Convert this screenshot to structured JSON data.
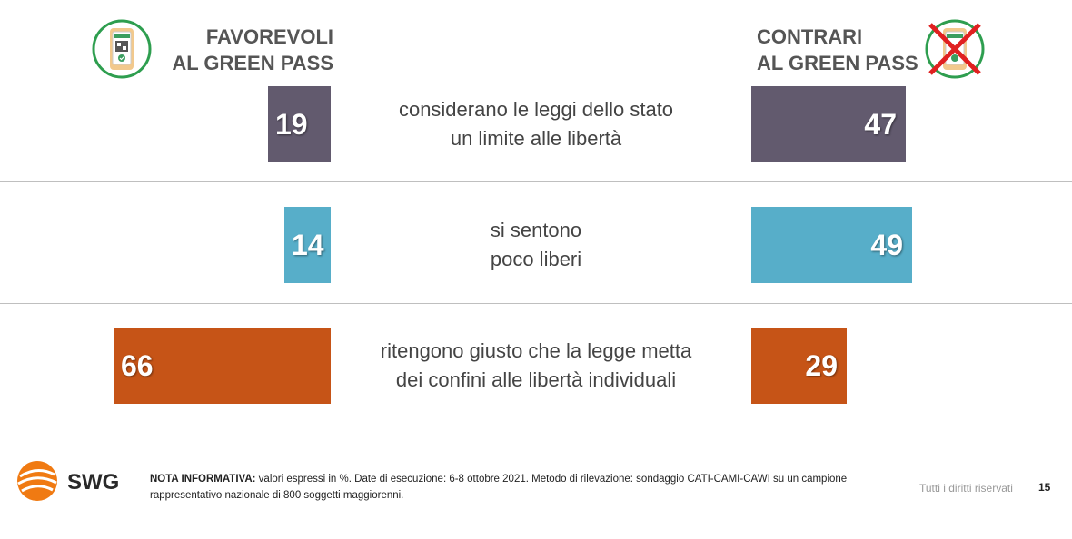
{
  "header": {
    "left_title": [
      "FAVOREVOLI",
      "AL GREEN PASS"
    ],
    "right_title": [
      "CONTRARI",
      "AL GREEN PASS"
    ]
  },
  "icons": {
    "left": "green-pass-phone-icon",
    "right": "green-pass-phone-crossed-icon"
  },
  "chart_data": {
    "type": "bar",
    "categories": [
      "considerano le leggi dello stato un limite alle libertà",
      "si sentono poco liberi",
      "ritengono giusto che la legge metta dei confini alle libertà individuali"
    ],
    "category_lines": [
      [
        "considerano le leggi dello stato",
        "un limite alle libertà"
      ],
      [
        "si sentono",
        "poco liberi"
      ],
      [
        "ritengono giusto che la legge metta",
        "dei confini alle libertà individuali"
      ]
    ],
    "series": [
      {
        "name": "FAVOREVOLI AL GREEN PASS",
        "values": [
          19,
          14,
          66
        ]
      },
      {
        "name": "CONTRARI AL GREEN PASS",
        "values": [
          47,
          49,
          29
        ]
      }
    ],
    "row_colors": [
      "#625a6e",
      "#57aec9",
      "#c65417"
    ],
    "unit": "%"
  },
  "footer": {
    "logo_text": "SWG",
    "note_label": "NOTA INFORMATIVA:",
    "note_text": " valori espressi in %. Date di esecuzione: 6-8  ottobre 2021. Metodo di rilevazione: sondaggio CATI-CAMI-CAWI su un campione rappresentativo nazionale di 800 soggetti maggiorenni.",
    "rights": "Tutti i diritti riservati",
    "page_number": "15"
  }
}
